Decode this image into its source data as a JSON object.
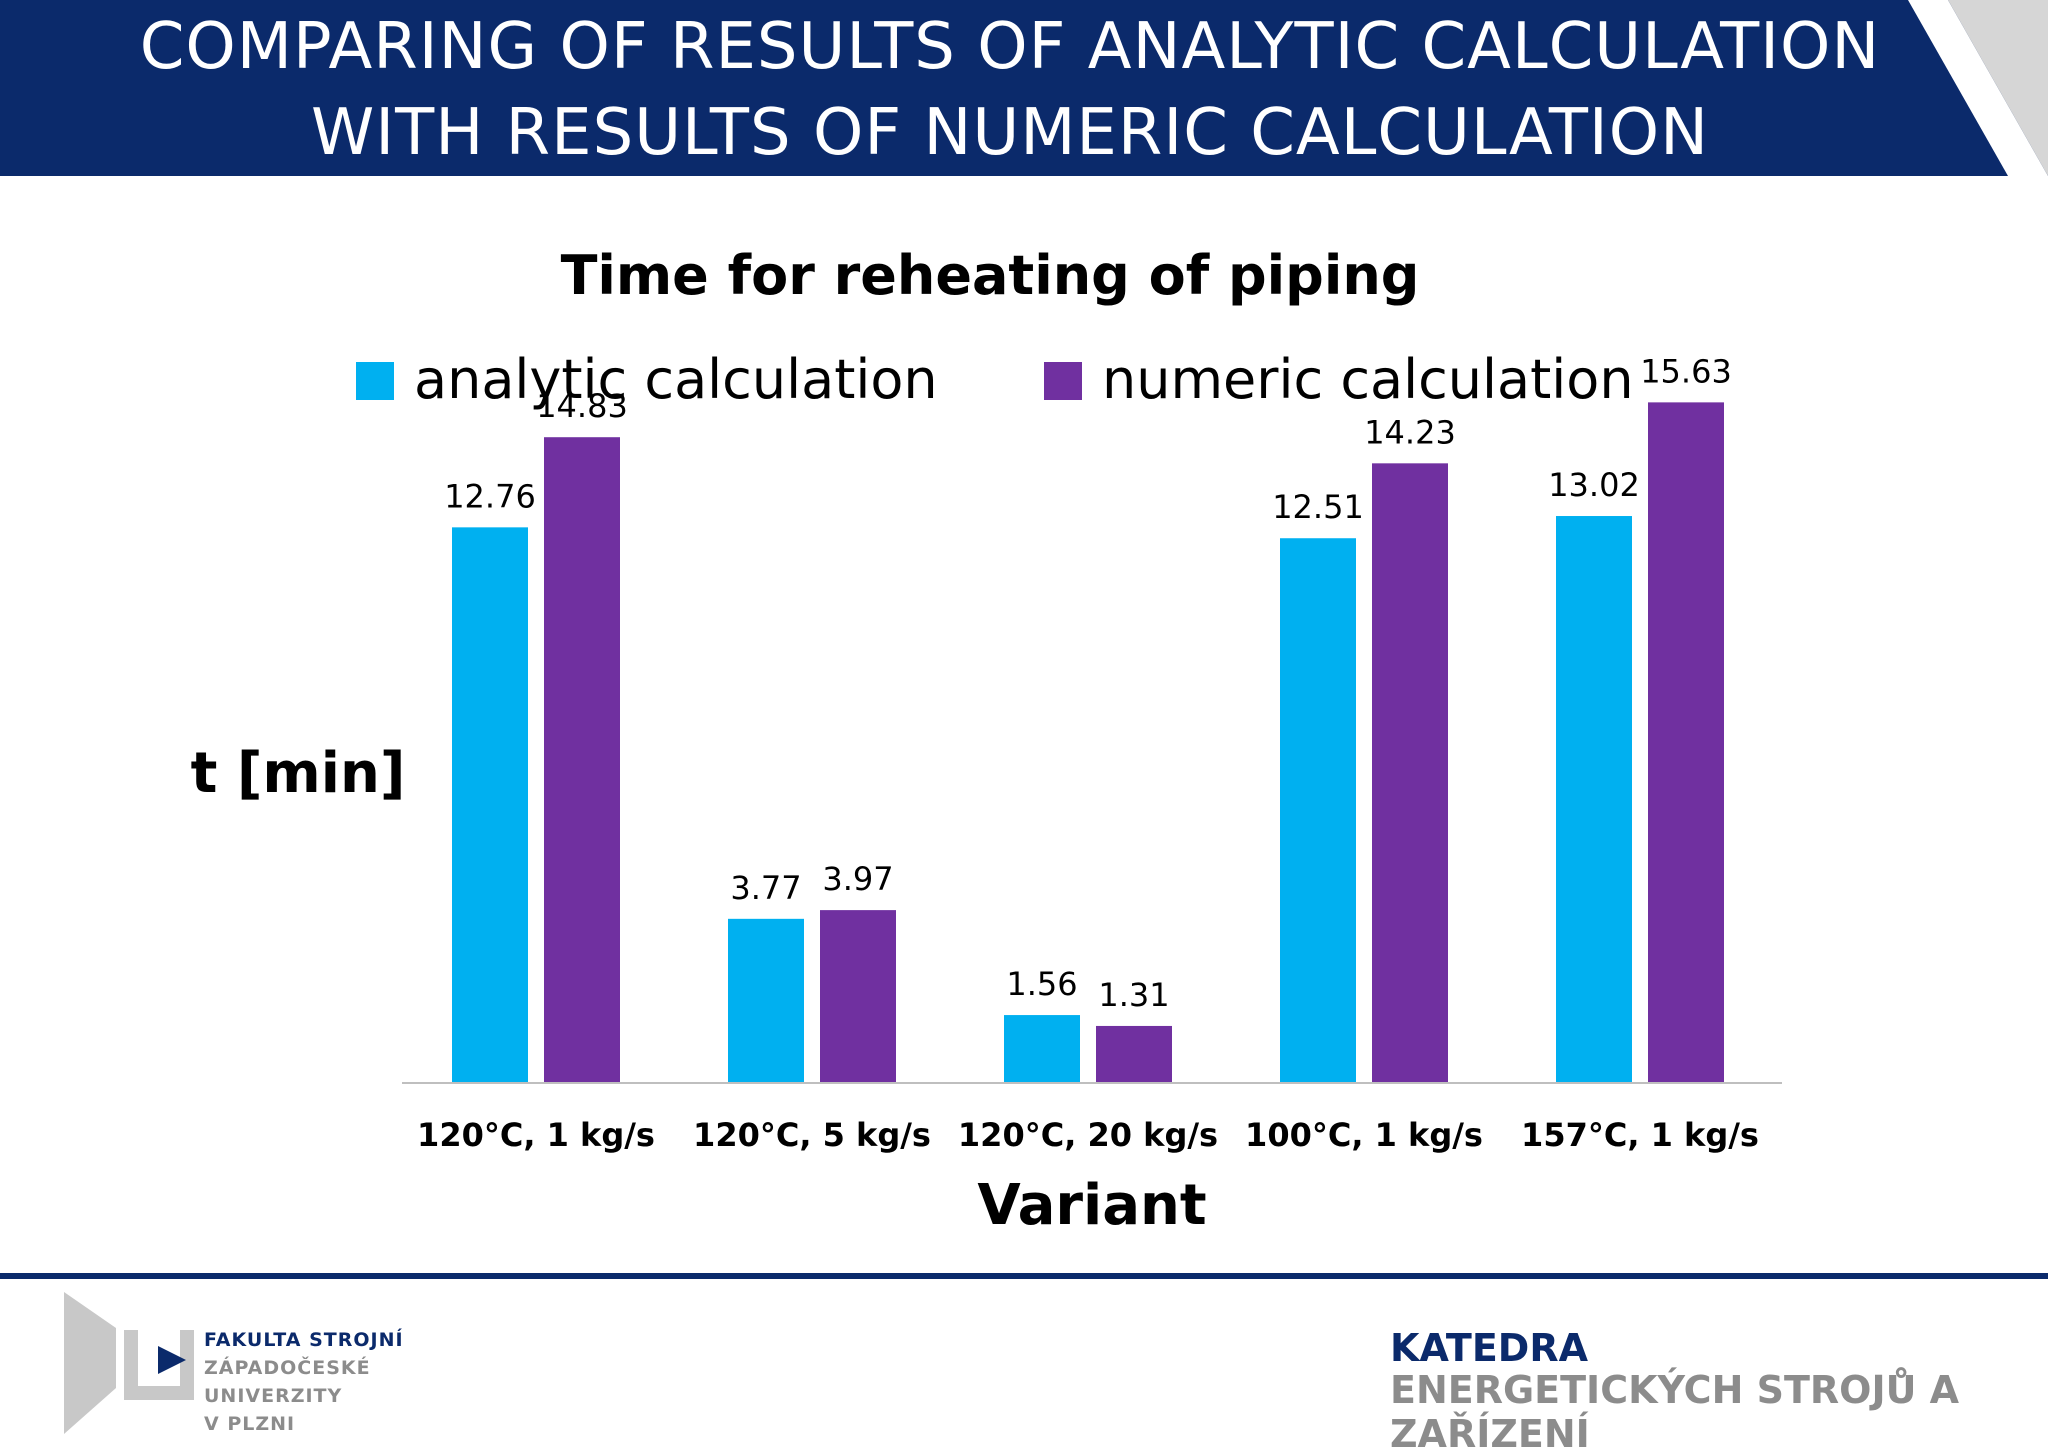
{
  "header": {
    "title_line1": "COMPARING OF RESULTS OF ANALYTIC CALCULATION",
    "title_line2": "WITH RESULTS OF NUMERIC CALCULATION"
  },
  "chart_data": {
    "type": "bar",
    "title": "Time for reheating of piping",
    "xlabel": "Variant",
    "ylabel": "t [min]",
    "categories": [
      "120°C, 1 kg/s",
      "120°C, 5 kg/s",
      "120°C, 20 kg/s",
      "100°C, 1 kg/s",
      "157°C, 1 kg/s"
    ],
    "series": [
      {
        "name": "analytic calculation",
        "color": "#00b0f0",
        "values": [
          12.76,
          3.77,
          1.56,
          12.51,
          13.02
        ]
      },
      {
        "name": "numeric calculation",
        "color": "#7030a0",
        "values": [
          14.83,
          3.97,
          1.31,
          14.23,
          15.63
        ]
      }
    ],
    "data_labels": [
      [
        "12.76",
        "3.77",
        "1.56",
        "12.51",
        "13.02"
      ],
      [
        "14.83",
        "3.97",
        "1.31",
        "14.23",
        "15.63"
      ]
    ],
    "ylim": [
      0,
      16.5
    ],
    "grid": false,
    "legend_position": "top"
  },
  "footer": {
    "logo_lines": [
      "FAKULTA STROJNÍ",
      "ZÁPADOČESKÉ",
      "UNIVERZITY",
      "V PLZNI"
    ],
    "department_line1": "KATEDRA",
    "department_line2": "ENERGETICKÝCH STROJŮ A ZAŘÍZENÍ"
  }
}
